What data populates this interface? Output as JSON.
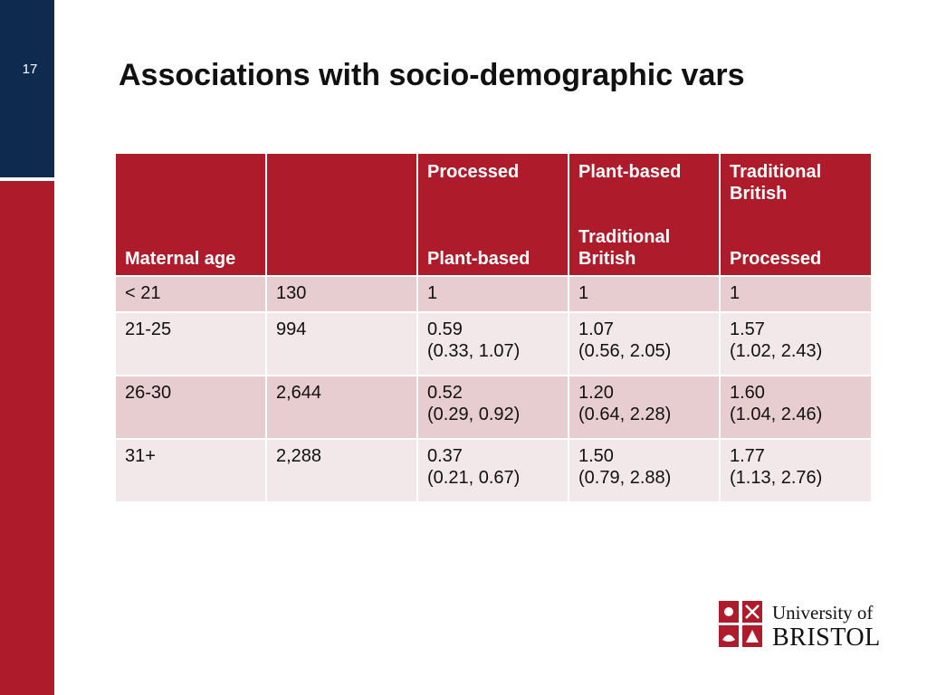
{
  "slide": {
    "number": "17",
    "title": "Associations with socio-demographic vars"
  },
  "table": {
    "headers": [
      {
        "top": "",
        "bottom": "Maternal age"
      },
      {
        "top": "",
        "bottom": ""
      },
      {
        "top": "Processed",
        "bottom": "Plant-based"
      },
      {
        "top": "Plant-based",
        "bottom": "Traditional British"
      },
      {
        "top": "Traditional British",
        "bottom": "Processed"
      }
    ],
    "rows": [
      {
        "age": "< 21",
        "n": "130",
        "c1": "1",
        "c1ci": "",
        "c2": "1",
        "c2ci": "",
        "c3": "1",
        "c3ci": ""
      },
      {
        "age": "21-25",
        "n": "994",
        "c1": "0.59",
        "c1ci": "(0.33, 1.07)",
        "c2": "1.07",
        "c2ci": "(0.56, 2.05)",
        "c3": "1.57",
        "c3ci": "(1.02, 2.43)"
      },
      {
        "age": "26-30",
        "n": "2,644",
        "c1": "0.52",
        "c1ci": "(0.29, 0.92)",
        "c2": "1.20",
        "c2ci": "(0.64, 2.28)",
        "c3": "1.60",
        "c3ci": "(1.04, 2.46)"
      },
      {
        "age": "31+",
        "n": "2,288",
        "c1": "0.37",
        "c1ci": "(0.21, 0.67)",
        "c2": "1.50",
        "c2ci": "(0.79, 2.88)",
        "c3": "1.77",
        "c3ci": "(1.13, 2.76)"
      }
    ]
  },
  "logo": {
    "line1": "University of",
    "line2": "BRISTOL"
  },
  "colors": {
    "navy": "#0e2a4f",
    "red": "#ae1c2c",
    "row_dark": "#e8cdd0",
    "row_light": "#f3e8e9"
  }
}
